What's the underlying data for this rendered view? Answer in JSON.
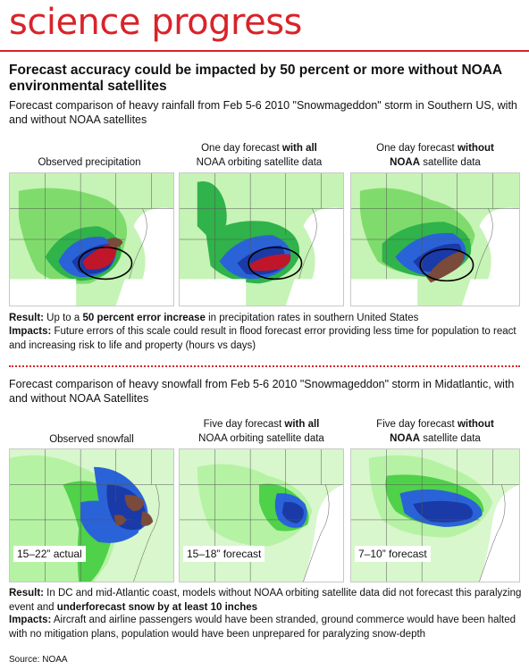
{
  "brand": "science progress",
  "headline": "Forecast accuracy could be impacted by 50 percent or more without NOAA environmental satellites",
  "rainfall": {
    "subtitle": "Forecast comparison of heavy rainfall from Feb 5-6 2010 \"Snowmageddon\" storm in Southern US, with and without NOAA satellites",
    "panels": [
      {
        "caption_plain": "Observed precipitation",
        "caption_bold": "",
        "caption_after": "",
        "line2_bold": "",
        "line2_plain": ""
      },
      {
        "caption_plain": "One day forecast ",
        "caption_bold": "with all",
        "caption_after": "",
        "line2_bold": "",
        "line2_plain": "NOAA orbiting satellite data"
      },
      {
        "caption_plain": "One day forecast ",
        "caption_bold": "without",
        "caption_after": "",
        "line2_bold": "NOAA",
        "line2_plain": " satellite data"
      }
    ],
    "result_label": "Result:",
    "result_pre": " Up to a ",
    "result_bold": "50 percent error increase",
    "result_post": " in precipitation rates in southern United States",
    "impacts_label": "Impacts:",
    "impacts_text": " Future errors of this scale could result in flood forecast error providing less time for population to react and increasing risk to life and property (hours vs days)"
  },
  "snowfall": {
    "subtitle": "Forecast comparison of heavy snowfall from Feb 5-6 2010 \"Snowmageddon\" storm in Midatlantic, with and without NOAA Satellites",
    "panels": [
      {
        "caption_plain": "Observed snowfall",
        "caption_bold": "",
        "line2_bold": "",
        "line2_plain": "",
        "map_label": "15–22” actual"
      },
      {
        "caption_plain": "Five day forecast ",
        "caption_bold": "with all",
        "line2_bold": "",
        "line2_plain": "NOAA orbiting satellite data",
        "map_label": "15–18” forecast"
      },
      {
        "caption_plain": "Five day forecast  ",
        "caption_bold": "without",
        "line2_bold": "NOAA",
        "line2_plain": " satellite data",
        "map_label": "7–10” forecast"
      }
    ],
    "result_label": "Result:",
    "result_pre": " In DC and mid-Atlantic coast, models without NOAA orbiting satellite data did not forecast this paralyzing event and ",
    "result_bold": "underforecast snow by at least 10 inches",
    "result_post": "",
    "impacts_label": "Impacts:",
    "impacts_text": " Aircraft and airline passengers would have been stranded, ground commerce would have been halted with no mitigation plans, population would have been unprepared for paralyzing snow-depth"
  },
  "source": "Source: NOAA",
  "colors": {
    "brand_red": "#d8232a",
    "light_green": "#b6f2a4",
    "green": "#4fd14a",
    "dark_green": "#1f9a3a",
    "blue": "#2a63d8",
    "dark_blue": "#1a3aa8",
    "red": "#c0162a",
    "brown": "#7a4a3a"
  }
}
